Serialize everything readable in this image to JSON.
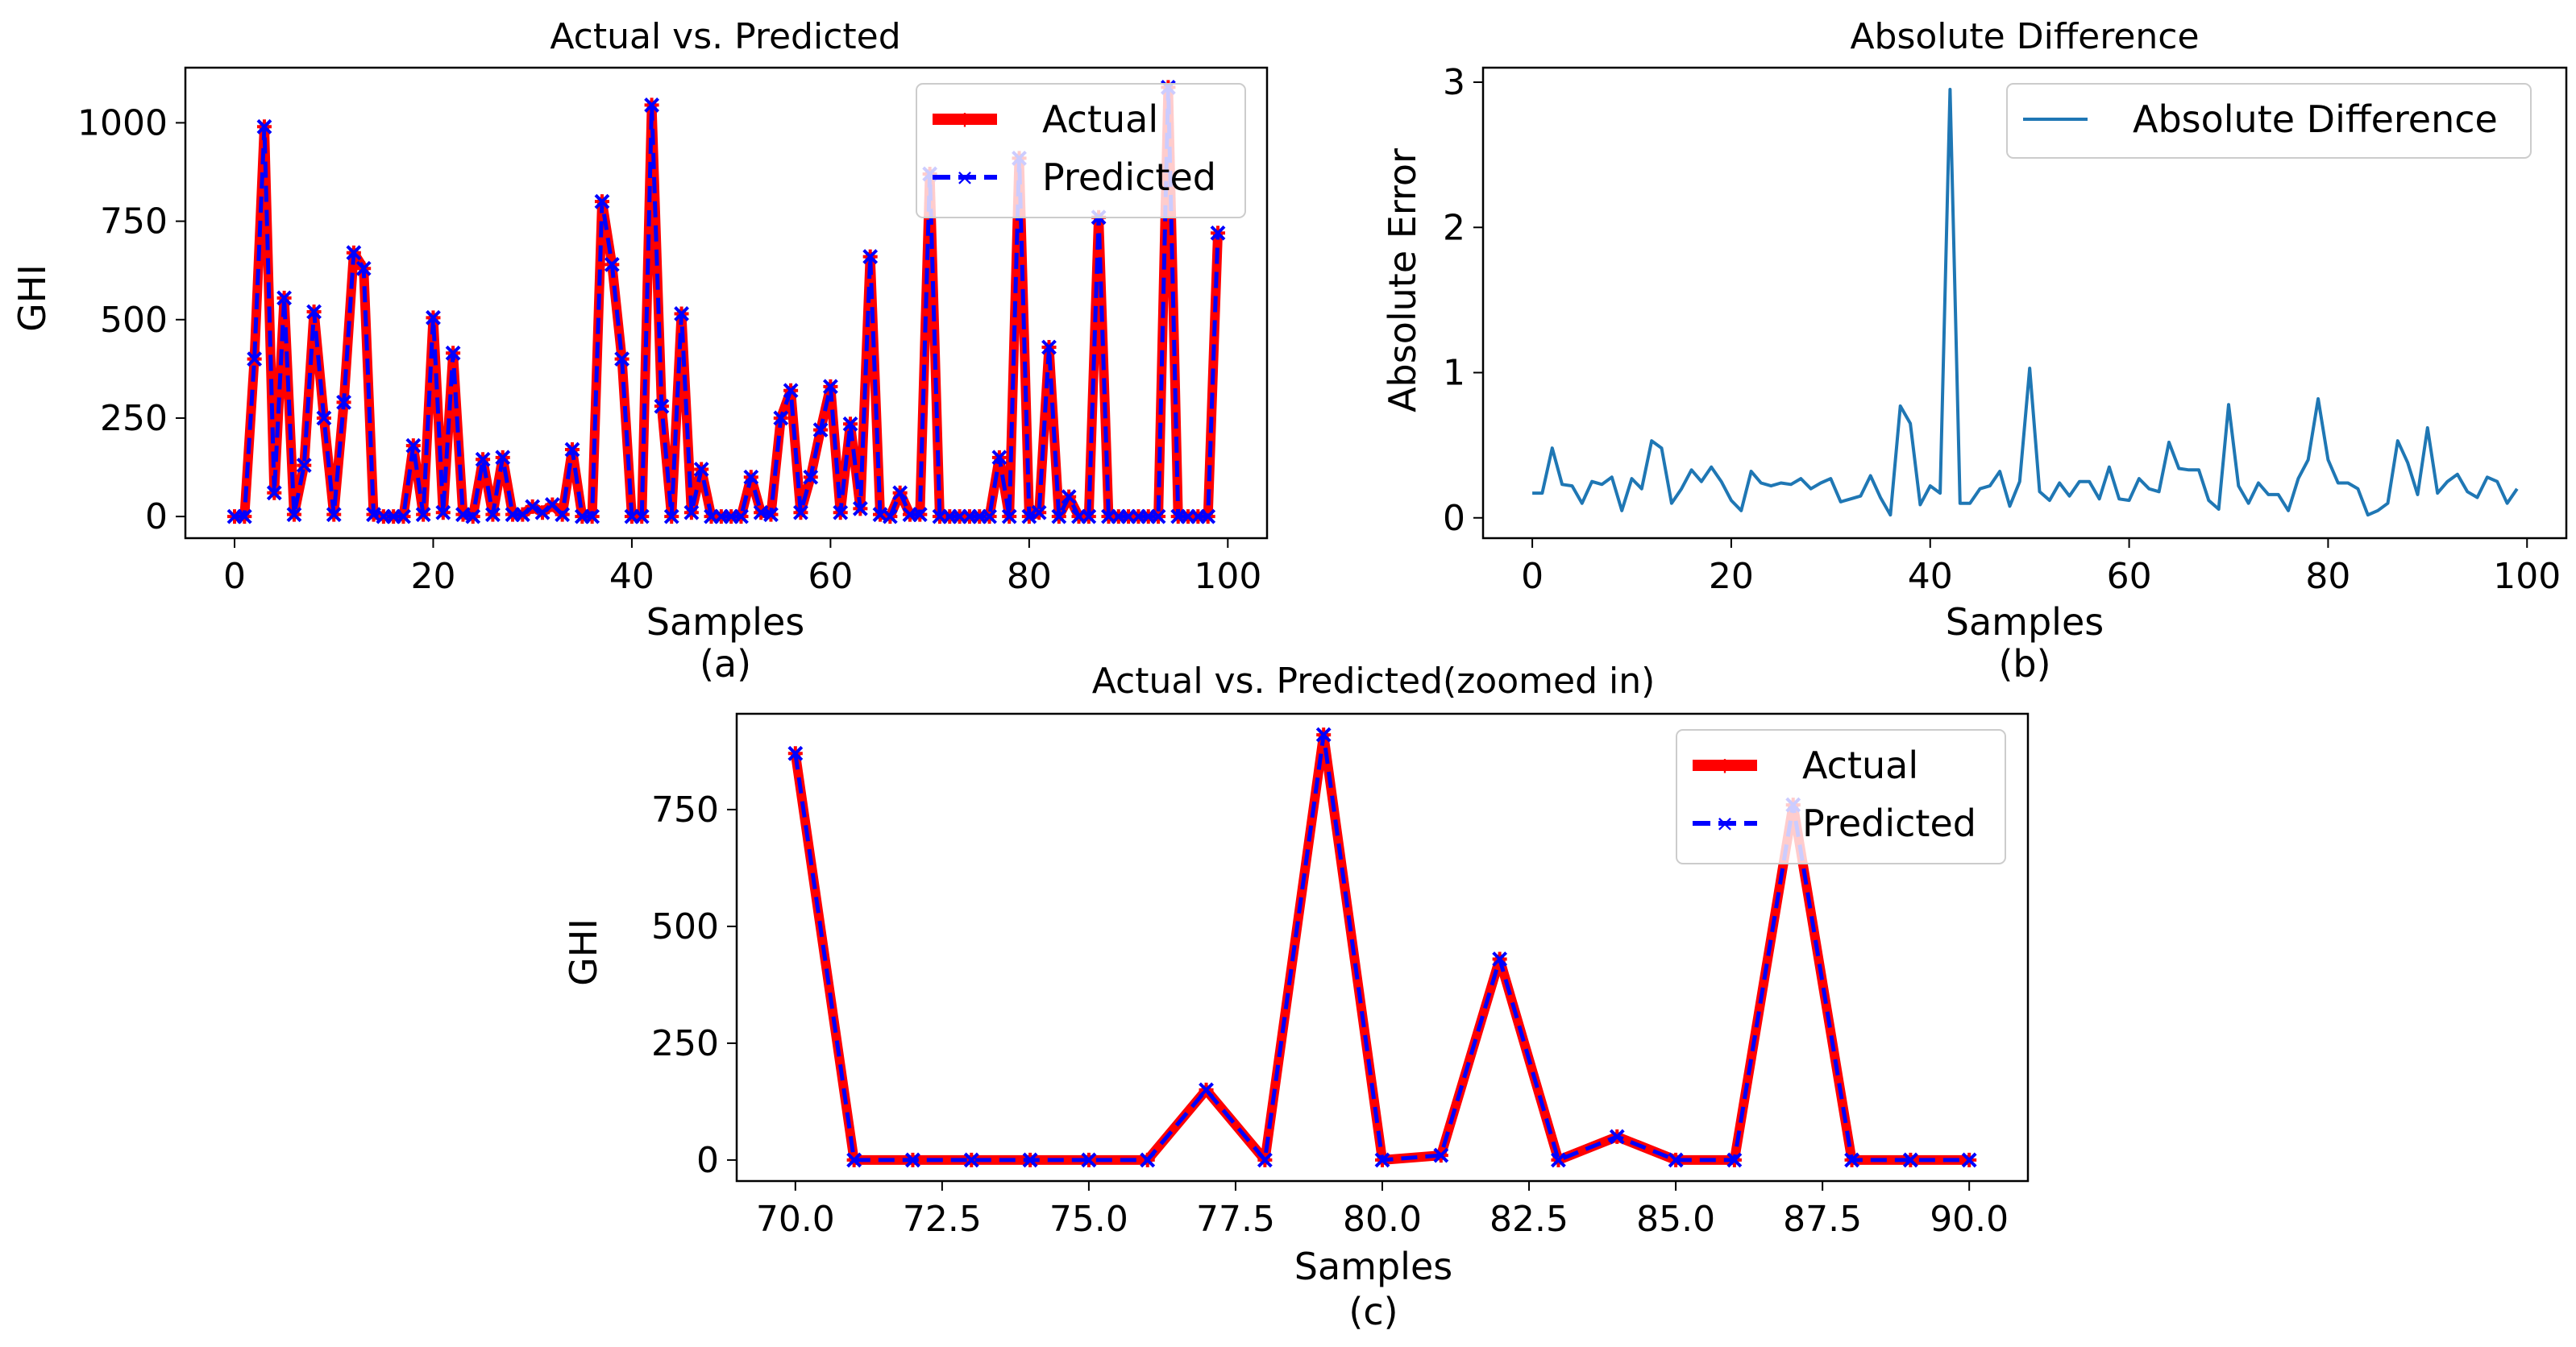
{
  "figure": {
    "background": "#ffffff"
  },
  "chart_data": [
    {
      "id": "a",
      "type": "line",
      "title": "Actual vs. Predicted",
      "xlabel": "Samples",
      "ylabel": "GHI",
      "caption": "(a)",
      "xlim": [
        -4.95,
        103.95
      ],
      "ylim": [
        -55,
        1140
      ],
      "xticks": [
        0,
        20,
        40,
        60,
        80,
        100
      ],
      "yticks": [
        0,
        250,
        500,
        750,
        1000
      ],
      "xtick_labels": [
        "0",
        "20",
        "40",
        "60",
        "80",
        "100"
      ],
      "ytick_labels": [
        "0",
        "250",
        "500",
        "750",
        "1000"
      ],
      "legend": {
        "position": "upper right",
        "entries": [
          "Actual",
          "Predicted"
        ]
      },
      "x": [
        0,
        1,
        2,
        3,
        4,
        5,
        6,
        7,
        8,
        9,
        10,
        11,
        12,
        13,
        14,
        15,
        16,
        17,
        18,
        19,
        20,
        21,
        22,
        23,
        24,
        25,
        26,
        27,
        28,
        29,
        30,
        31,
        32,
        33,
        34,
        35,
        36,
        37,
        38,
        39,
        40,
        41,
        42,
        43,
        44,
        45,
        46,
        47,
        48,
        49,
        50,
        51,
        52,
        53,
        54,
        55,
        56,
        57,
        58,
        59,
        60,
        61,
        62,
        63,
        64,
        65,
        66,
        67,
        68,
        69,
        70,
        71,
        72,
        73,
        74,
        75,
        76,
        77,
        78,
        79,
        80,
        81,
        82,
        83,
        84,
        85,
        86,
        87,
        88,
        89,
        90,
        91,
        92,
        93,
        94,
        95,
        96,
        97,
        98,
        99
      ],
      "series": [
        {
          "name": "Actual",
          "color": "#ff0000",
          "values": [
            0,
            0,
            400,
            990,
            60,
            555,
            5,
            130,
            520,
            250,
            5,
            290,
            670,
            630,
            5,
            0,
            0,
            0,
            180,
            5,
            505,
            10,
            415,
            5,
            0,
            145,
            5,
            150,
            5,
            5,
            25,
            10,
            30,
            5,
            170,
            0,
            0,
            800,
            640,
            400,
            0,
            0,
            1045,
            280,
            0,
            515,
            10,
            120,
            0,
            0,
            0,
            0,
            100,
            10,
            5,
            250,
            320,
            10,
            100,
            220,
            330,
            10,
            235,
            20,
            660,
            5,
            0,
            60,
            5,
            5,
            870,
            0,
            0,
            0,
            0,
            0,
            0,
            150,
            0,
            910,
            0,
            10,
            430,
            0,
            50,
            0,
            0,
            760,
            0,
            0,
            0,
            0,
            0,
            0,
            1090,
            0,
            0,
            0,
            0,
            720
          ]
        },
        {
          "name": "Predicted",
          "color": "#0000ff",
          "values": [
            0,
            0,
            400,
            990,
            60,
            555,
            5,
            130,
            520,
            250,
            5,
            290,
            670,
            630,
            5,
            0,
            0,
            0,
            180,
            5,
            505,
            10,
            415,
            5,
            0,
            145,
            5,
            150,
            5,
            5,
            25,
            10,
            30,
            5,
            170,
            0,
            0,
            800,
            640,
            400,
            0,
            0,
            1045,
            280,
            0,
            515,
            10,
            120,
            0,
            0,
            0,
            0,
            100,
            10,
            5,
            250,
            320,
            10,
            100,
            220,
            330,
            10,
            235,
            20,
            660,
            5,
            0,
            60,
            5,
            5,
            870,
            0,
            0,
            0,
            0,
            0,
            0,
            150,
            0,
            910,
            0,
            10,
            430,
            0,
            50,
            0,
            0,
            760,
            0,
            0,
            0,
            0,
            0,
            0,
            1090,
            0,
            0,
            0,
            0,
            720
          ]
        }
      ]
    },
    {
      "id": "b",
      "type": "line",
      "title": "Absolute Difference",
      "xlabel": "Samples",
      "ylabel": "Absolute Error",
      "caption": "(b)",
      "xlim": [
        -4.95,
        103.95
      ],
      "ylim": [
        -0.14,
        3.1
      ],
      "xticks": [
        0,
        20,
        40,
        60,
        80,
        100
      ],
      "yticks": [
        0,
        1,
        2,
        3
      ],
      "xtick_labels": [
        "0",
        "20",
        "40",
        "60",
        "80",
        "100"
      ],
      "ytick_labels": [
        "0",
        "1",
        "2",
        "3"
      ],
      "legend": {
        "position": "upper right",
        "entries": [
          "Absolute Difference"
        ]
      },
      "x": [
        0,
        1,
        2,
        3,
        4,
        5,
        6,
        7,
        8,
        9,
        10,
        11,
        12,
        13,
        14,
        15,
        16,
        17,
        18,
        19,
        20,
        21,
        22,
        23,
        24,
        25,
        26,
        27,
        28,
        29,
        30,
        31,
        32,
        33,
        34,
        35,
        36,
        37,
        38,
        39,
        40,
        41,
        42,
        43,
        44,
        45,
        46,
        47,
        48,
        49,
        50,
        51,
        52,
        53,
        54,
        55,
        56,
        57,
        58,
        59,
        60,
        61,
        62,
        63,
        64,
        65,
        66,
        67,
        68,
        69,
        70,
        71,
        72,
        73,
        74,
        75,
        76,
        77,
        78,
        79,
        80,
        81,
        82,
        83,
        84,
        85,
        86,
        87,
        88,
        89,
        90,
        91,
        92,
        93,
        94,
        95,
        96,
        97,
        98,
        99
      ],
      "series": [
        {
          "name": "Absolute Difference",
          "color": "#1f77b4",
          "values": [
            0.17,
            0.17,
            0.48,
            0.23,
            0.22,
            0.1,
            0.25,
            0.23,
            0.28,
            0.05,
            0.27,
            0.2,
            0.53,
            0.48,
            0.1,
            0.2,
            0.33,
            0.25,
            0.35,
            0.25,
            0.12,
            0.05,
            0.32,
            0.24,
            0.22,
            0.24,
            0.23,
            0.27,
            0.2,
            0.24,
            0.27,
            0.11,
            0.13,
            0.15,
            0.29,
            0.14,
            0.02,
            0.77,
            0.65,
            0.09,
            0.22,
            0.17,
            2.95,
            0.1,
            0.1,
            0.2,
            0.22,
            0.32,
            0.08,
            0.25,
            1.03,
            0.18,
            0.12,
            0.24,
            0.15,
            0.25,
            0.25,
            0.13,
            0.35,
            0.13,
            0.12,
            0.27,
            0.2,
            0.18,
            0.52,
            0.34,
            0.33,
            0.33,
            0.12,
            0.06,
            0.78,
            0.22,
            0.1,
            0.24,
            0.16,
            0.16,
            0.05,
            0.27,
            0.4,
            0.82,
            0.4,
            0.24,
            0.24,
            0.2,
            0.02,
            0.05,
            0.1,
            0.53,
            0.38,
            0.16,
            0.62,
            0.17,
            0.25,
            0.3,
            0.18,
            0.14,
            0.28,
            0.25,
            0.1,
            0.2
          ]
        }
      ]
    },
    {
      "id": "c",
      "type": "line",
      "title": "Actual vs. Predicted(zoomed in)",
      "xlabel": "Samples",
      "ylabel": "GHI",
      "caption": "(c)",
      "xlim": [
        69,
        91
      ],
      "ylim": [
        -45,
        955
      ],
      "xticks": [
        70,
        72.5,
        75,
        77.5,
        80,
        82.5,
        85,
        87.5,
        90
      ],
      "yticks": [
        0,
        250,
        500,
        750
      ],
      "xtick_labels": [
        "70.0",
        "72.5",
        "75.0",
        "77.5",
        "80.0",
        "82.5",
        "85.0",
        "87.5",
        "90.0"
      ],
      "ytick_labels": [
        "0",
        "250",
        "500",
        "750"
      ],
      "legend": {
        "position": "upper right",
        "entries": [
          "Actual",
          "Predicted"
        ]
      },
      "x": [
        70,
        71,
        72,
        73,
        74,
        75,
        76,
        77,
        78,
        79,
        80,
        81,
        82,
        83,
        84,
        85,
        86,
        87,
        88,
        89,
        90
      ],
      "series": [
        {
          "name": "Actual",
          "color": "#ff0000",
          "values": [
            870,
            0,
            0,
            0,
            0,
            0,
            0,
            150,
            0,
            910,
            0,
            10,
            430,
            0,
            50,
            0,
            0,
            760,
            0,
            0,
            0
          ]
        },
        {
          "name": "Predicted",
          "color": "#0000ff",
          "values": [
            870,
            0,
            0,
            0,
            0,
            0,
            0,
            150,
            0,
            910,
            0,
            10,
            430,
            0,
            50,
            0,
            0,
            760,
            0,
            0,
            0
          ]
        }
      ]
    }
  ]
}
